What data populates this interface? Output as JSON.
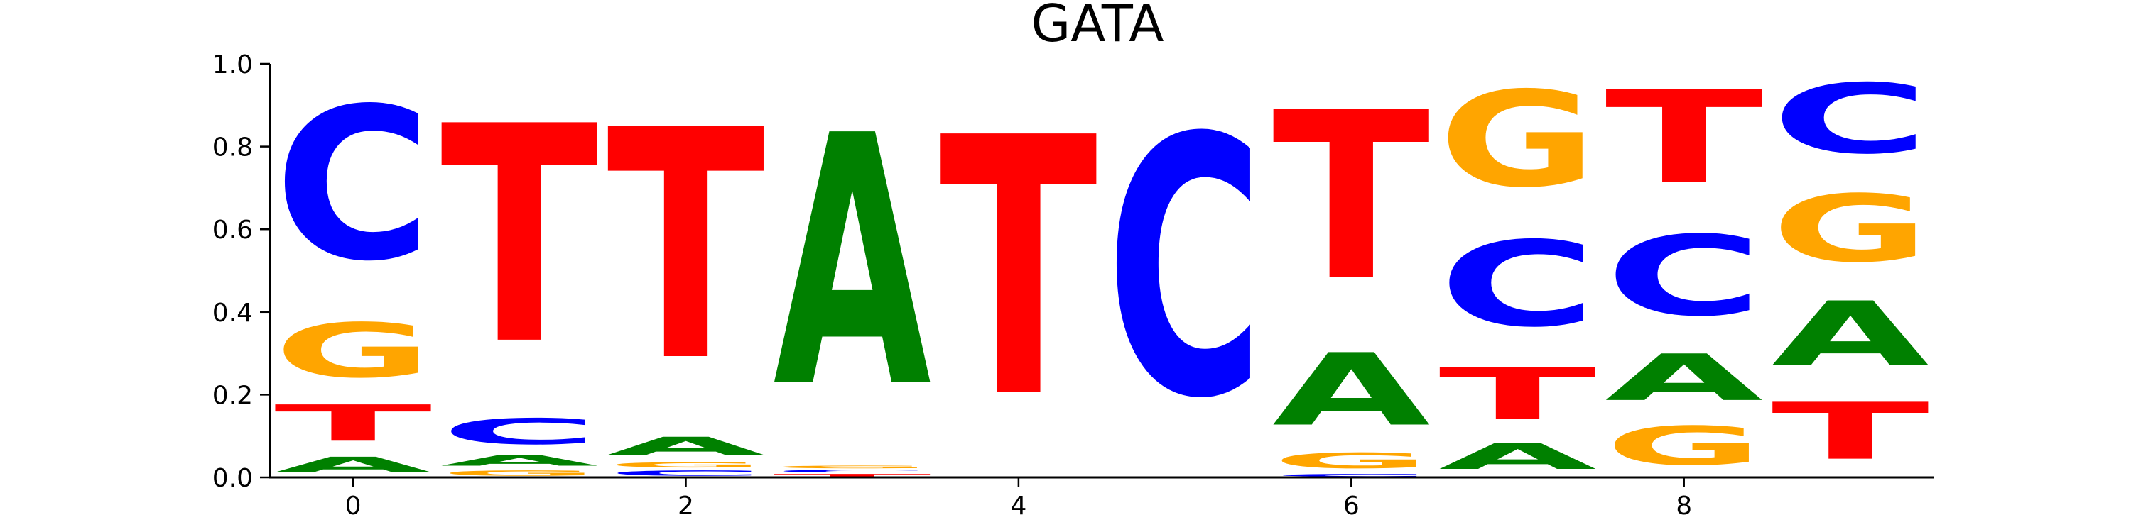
{
  "chart_data": {
    "type": "sequence_logo",
    "title": "GATA",
    "xlabel": "",
    "ylabel": "",
    "xlim": [
      -0.5,
      9.5
    ],
    "ylim": [
      0.0,
      1.0
    ],
    "x_ticks": [
      0,
      2,
      4,
      6,
      8
    ],
    "x_tick_labels": [
      "0",
      "2",
      "4",
      "6",
      "8"
    ],
    "y_ticks": [
      0.0,
      0.2,
      0.4,
      0.6,
      0.8,
      1.0
    ],
    "y_tick_labels": [
      "0.0",
      "0.2",
      "0.4",
      "0.6",
      "0.8",
      "1.0"
    ],
    "colors": {
      "A": "#008000",
      "C": "#0000ff",
      "G": "#ffa500",
      "T": "#ff0000"
    },
    "positions": [
      {
        "index": 0,
        "letters": [
          {
            "base": "A",
            "value": 0.06
          },
          {
            "base": "T",
            "value": 0.14
          },
          {
            "base": "G",
            "value": 0.21
          },
          {
            "base": "C",
            "value": 0.59
          }
        ]
      },
      {
        "index": 1,
        "letters": [
          {
            "base": "G",
            "value": 0.02
          },
          {
            "base": "A",
            "value": 0.04
          },
          {
            "base": "C",
            "value": 0.1
          },
          {
            "base": "T",
            "value": 0.84
          }
        ]
      },
      {
        "index": 2,
        "letters": [
          {
            "base": "C",
            "value": 0.02
          },
          {
            "base": "G",
            "value": 0.02
          },
          {
            "base": "A",
            "value": 0.07
          },
          {
            "base": "T",
            "value": 0.89
          }
        ]
      },
      {
        "index": 3,
        "letters": [
          {
            "base": "T",
            "value": 0.01
          },
          {
            "base": "C",
            "value": 0.01
          },
          {
            "base": "G",
            "value": 0.01
          },
          {
            "base": "A",
            "value": 0.97
          }
        ]
      },
      {
        "index": 4,
        "letters": [
          {
            "base": "T",
            "value": 1.0
          }
        ]
      },
      {
        "index": 5,
        "letters": [
          {
            "base": "C",
            "value": 1.0
          }
        ]
      },
      {
        "index": 6,
        "letters": [
          {
            "base": "C",
            "value": 0.01
          },
          {
            "base": "G",
            "value": 0.06
          },
          {
            "base": "A",
            "value": 0.28
          },
          {
            "base": "T",
            "value": 0.65
          }
        ]
      },
      {
        "index": 7,
        "letters": [
          {
            "base": "A",
            "value": 0.1
          },
          {
            "base": "T",
            "value": 0.2
          },
          {
            "base": "C",
            "value": 0.33
          },
          {
            "base": "G",
            "value": 0.37
          }
        ]
      },
      {
        "index": 8,
        "letters": [
          {
            "base": "G",
            "value": 0.15
          },
          {
            "base": "A",
            "value": 0.18
          },
          {
            "base": "C",
            "value": 0.31
          },
          {
            "base": "T",
            "value": 0.36
          }
        ]
      },
      {
        "index": 9,
        "letters": [
          {
            "base": "T",
            "value": 0.22
          },
          {
            "base": "A",
            "value": 0.25
          },
          {
            "base": "G",
            "value": 0.26
          },
          {
            "base": "C",
            "value": 0.27
          }
        ]
      }
    ]
  }
}
